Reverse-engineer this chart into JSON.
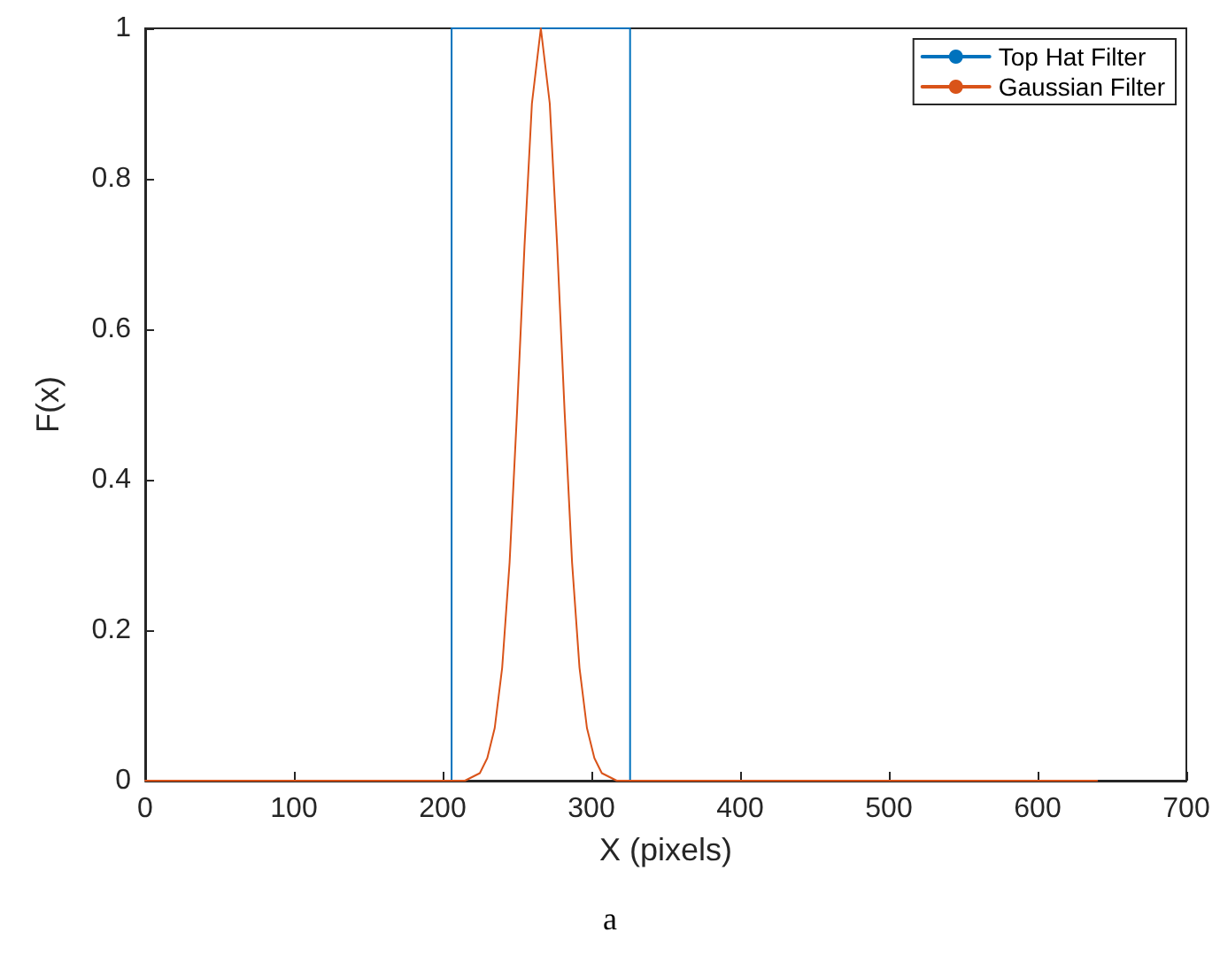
{
  "chart_data": {
    "type": "line",
    "xlabel": "X (pixels)",
    "ylabel": "F(x)",
    "series": [
      {
        "name": "Top Hat Filter",
        "color": "#0072bd",
        "x": [
          0,
          206,
          206,
          326,
          326,
          640
        ],
        "values": [
          0,
          0,
          1,
          1,
          0,
          0
        ]
      },
      {
        "name": "Gaussian Filter",
        "color": "#d95319",
        "x": [
          0,
          215,
          225,
          230,
          235,
          240,
          245,
          250,
          255,
          260,
          266,
          272,
          277,
          282,
          287,
          292,
          297,
          302,
          307,
          317,
          640
        ],
        "values": [
          0,
          0,
          0.01,
          0.03,
          0.07,
          0.15,
          0.29,
          0.49,
          0.71,
          0.9,
          1,
          0.9,
          0.71,
          0.49,
          0.29,
          0.15,
          0.07,
          0.03,
          0.01,
          0,
          0
        ]
      }
    ],
    "xlim": [
      0,
      700
    ],
    "xticks": [
      0,
      100,
      200,
      300,
      400,
      500,
      600,
      700
    ],
    "ylim": [
      0,
      1
    ],
    "yticks": [
      0,
      0.2,
      0.4,
      0.6,
      0.8,
      1
    ],
    "grid": false,
    "legend": "top right",
    "marker": "none",
    "line_style": "solid",
    "annotations": [
      "a"
    ]
  }
}
